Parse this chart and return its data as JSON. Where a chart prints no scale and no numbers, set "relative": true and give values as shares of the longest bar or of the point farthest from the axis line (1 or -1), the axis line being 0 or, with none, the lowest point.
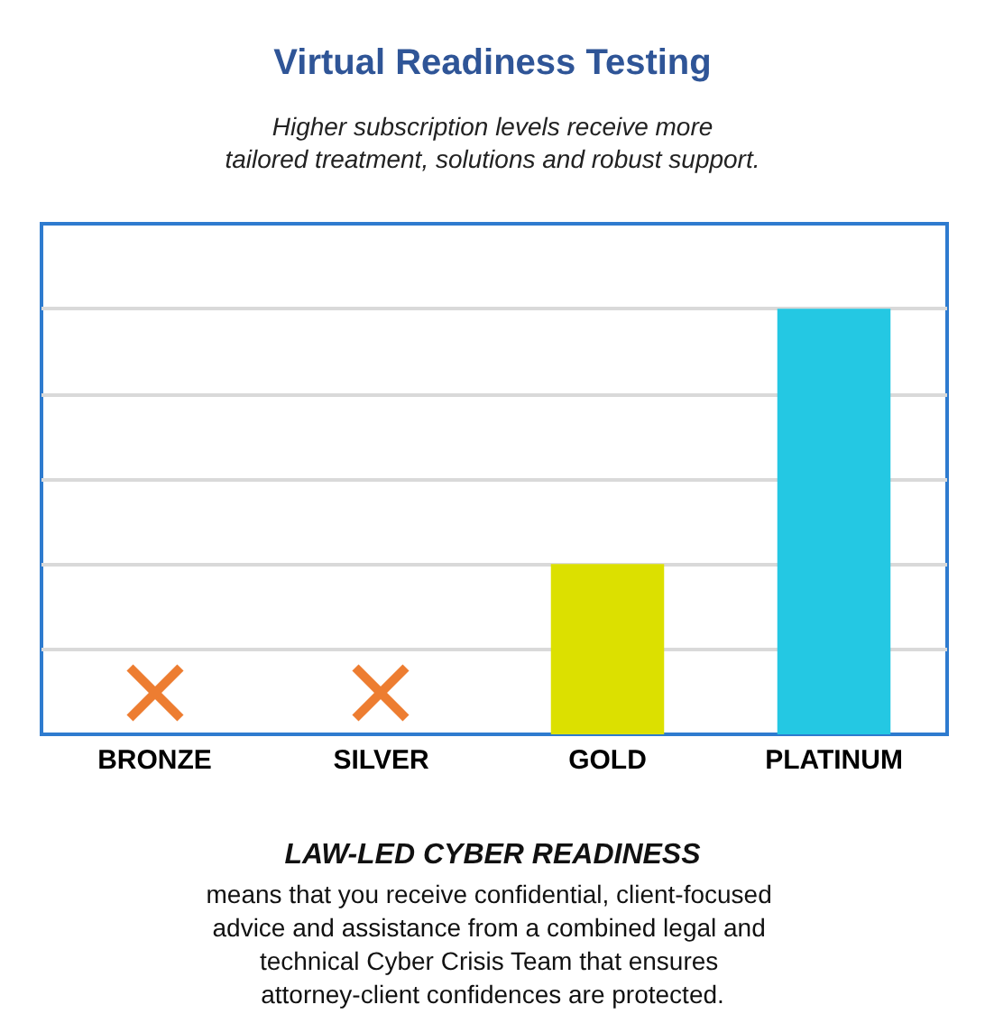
{
  "chart_data": {
    "type": "bar",
    "title": "Virtual Readiness Testing",
    "subtitle": "Higher subscription levels receive more\ntailored treatment, solutions and robust support.",
    "categories": [
      "BRONZE",
      "SILVER",
      "GOLD",
      "PLATINUM"
    ],
    "values": [
      0,
      0,
      0.4,
      1
    ],
    "colors": [
      "#ed7d31",
      "#ed7d31",
      "#dce000",
      "#24c8e3"
    ],
    "relative": true,
    "grid": "y",
    "annotations": [
      "LAW-LED CYBER READINESS",
      "means that you receive confidential, client-focused advice and assistance from a combined legal and technical Cyber Crisis Team that ensures attorney-client confidences are protected."
    ]
  }
}
